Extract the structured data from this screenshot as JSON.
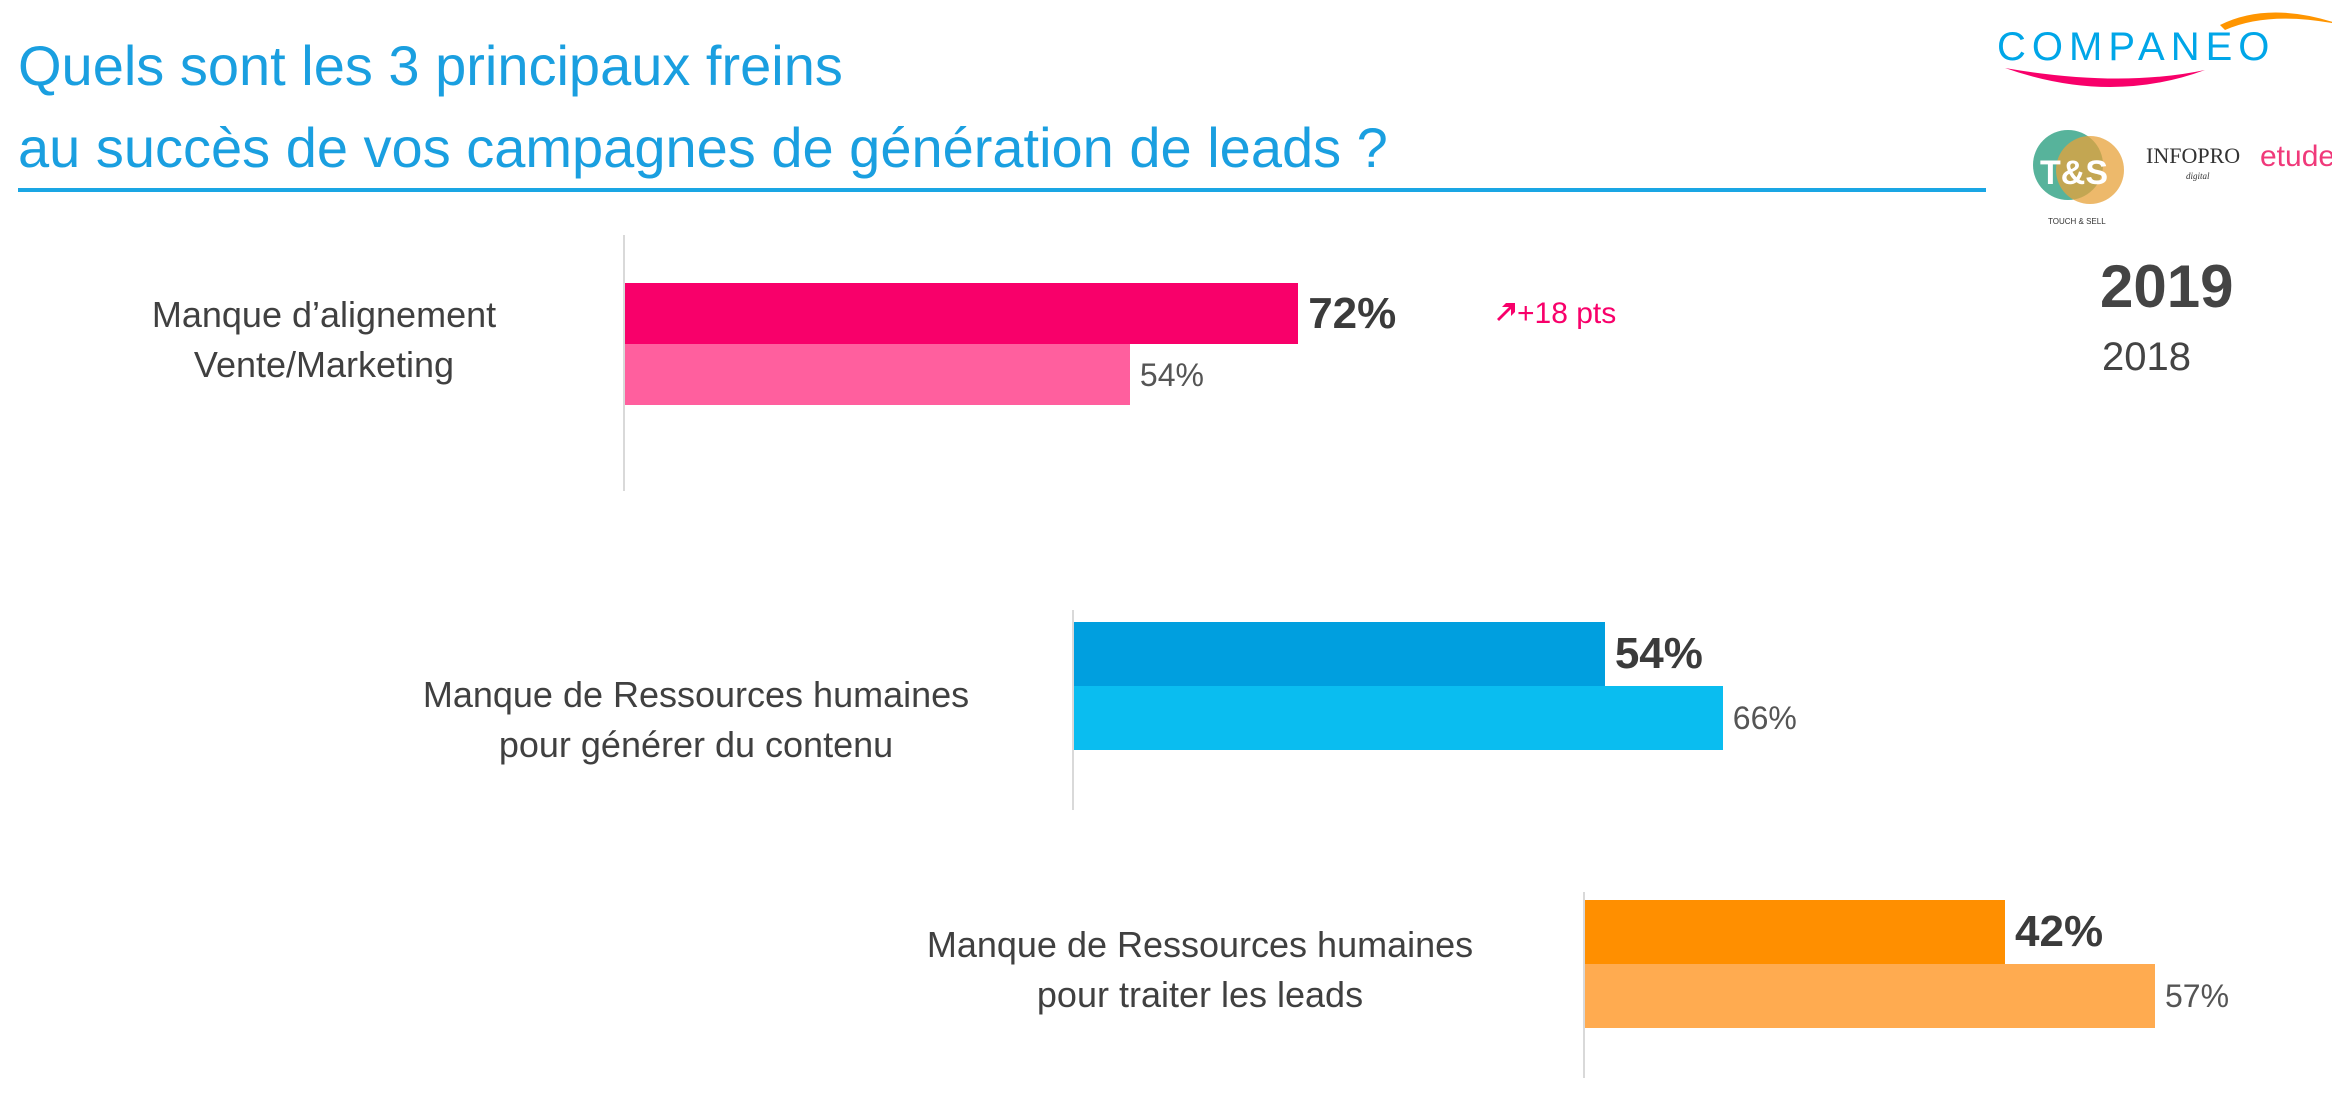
{
  "header": {
    "title_line1": "Quels sont les 3 principaux freins",
    "title_line2": "au succès de vos campagnes de génération de leads ?"
  },
  "logos": {
    "companeo": "COMPANEO",
    "ts": "T&S",
    "ts_sub": "TOUCH & SELL",
    "infopro": "INFOPRO",
    "infopro_sub": "digital",
    "etudes": "etudes"
  },
  "legend": {
    "current": "2019",
    "previous": "2018"
  },
  "chart_data": {
    "type": "bar",
    "orientation": "horizontal",
    "title": "Quels sont les 3 principaux freins au succès de vos campagnes de génération de leads ?",
    "categories": [
      [
        "Manque d’alignement",
        "Vente/Marketing"
      ],
      [
        "Manque de Ressources humaines",
        "pour générer du contenu"
      ],
      [
        "Manque de Ressources humaines",
        "pour traiter les leads"
      ]
    ],
    "series": [
      {
        "name": "2019",
        "values": [
          72,
          54,
          42
        ],
        "labels": [
          "72%",
          "54%",
          "42%"
        ]
      },
      {
        "name": "2018",
        "values": [
          54,
          66,
          57
        ],
        "labels": [
          "54%",
          "66%",
          "57%"
        ]
      }
    ],
    "colors": {
      "2019": [
        "#f8006a",
        "#009fdf",
        "#ff8f00"
      ],
      "2018": [
        "#ff5f9e",
        "#0abdf0",
        "#ffab50"
      ]
    },
    "annotations": [
      {
        "category": 0,
        "text": "+18 pts",
        "icon": "arrow-up-right-icon",
        "color": "#f8006a"
      }
    ],
    "unit": "%",
    "legend_position": "top-right"
  }
}
